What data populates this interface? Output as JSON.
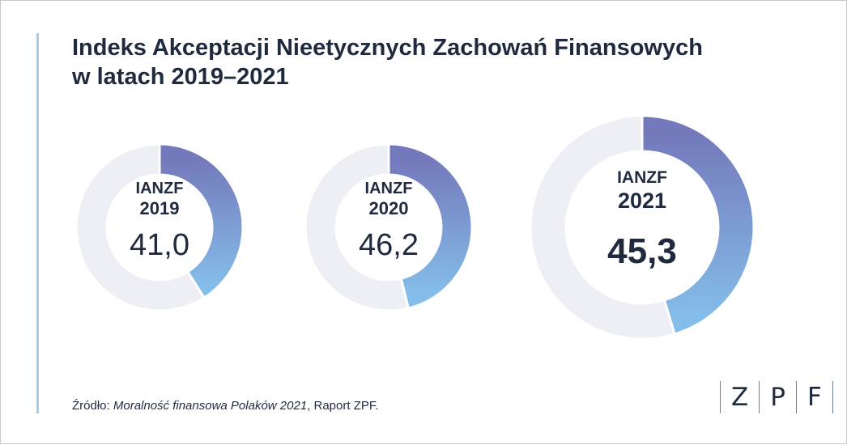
{
  "title_line1": "Indeks Akceptacji Nieetycznych Zachowań Finansowych",
  "title_line2": "w latach 2019–2021",
  "chart_data": {
    "type": "donut",
    "title": "Indeks Akceptacji Nieetycznych Zachowań Finansowych w latach 2019–2021",
    "max": 100,
    "items": [
      {
        "label": "IANZF",
        "year": "2019",
        "value": 41.0,
        "display": "41,0"
      },
      {
        "label": "IANZF",
        "year": "2020",
        "value": 46.2,
        "display": "46,2"
      },
      {
        "label": "IANZF",
        "year": "2021",
        "value": 45.3,
        "display": "45,3"
      }
    ],
    "colors": {
      "filled_start": "#7479bb",
      "filled_end": "#84bde9",
      "remainder": "#eeeff4"
    }
  },
  "source": {
    "prefix": "Źródło: ",
    "title": "Moralność finansowa Polaków 2021",
    "suffix": ", Raport ZPF."
  },
  "logo": {
    "letters": [
      "Z",
      "P",
      "F"
    ]
  }
}
